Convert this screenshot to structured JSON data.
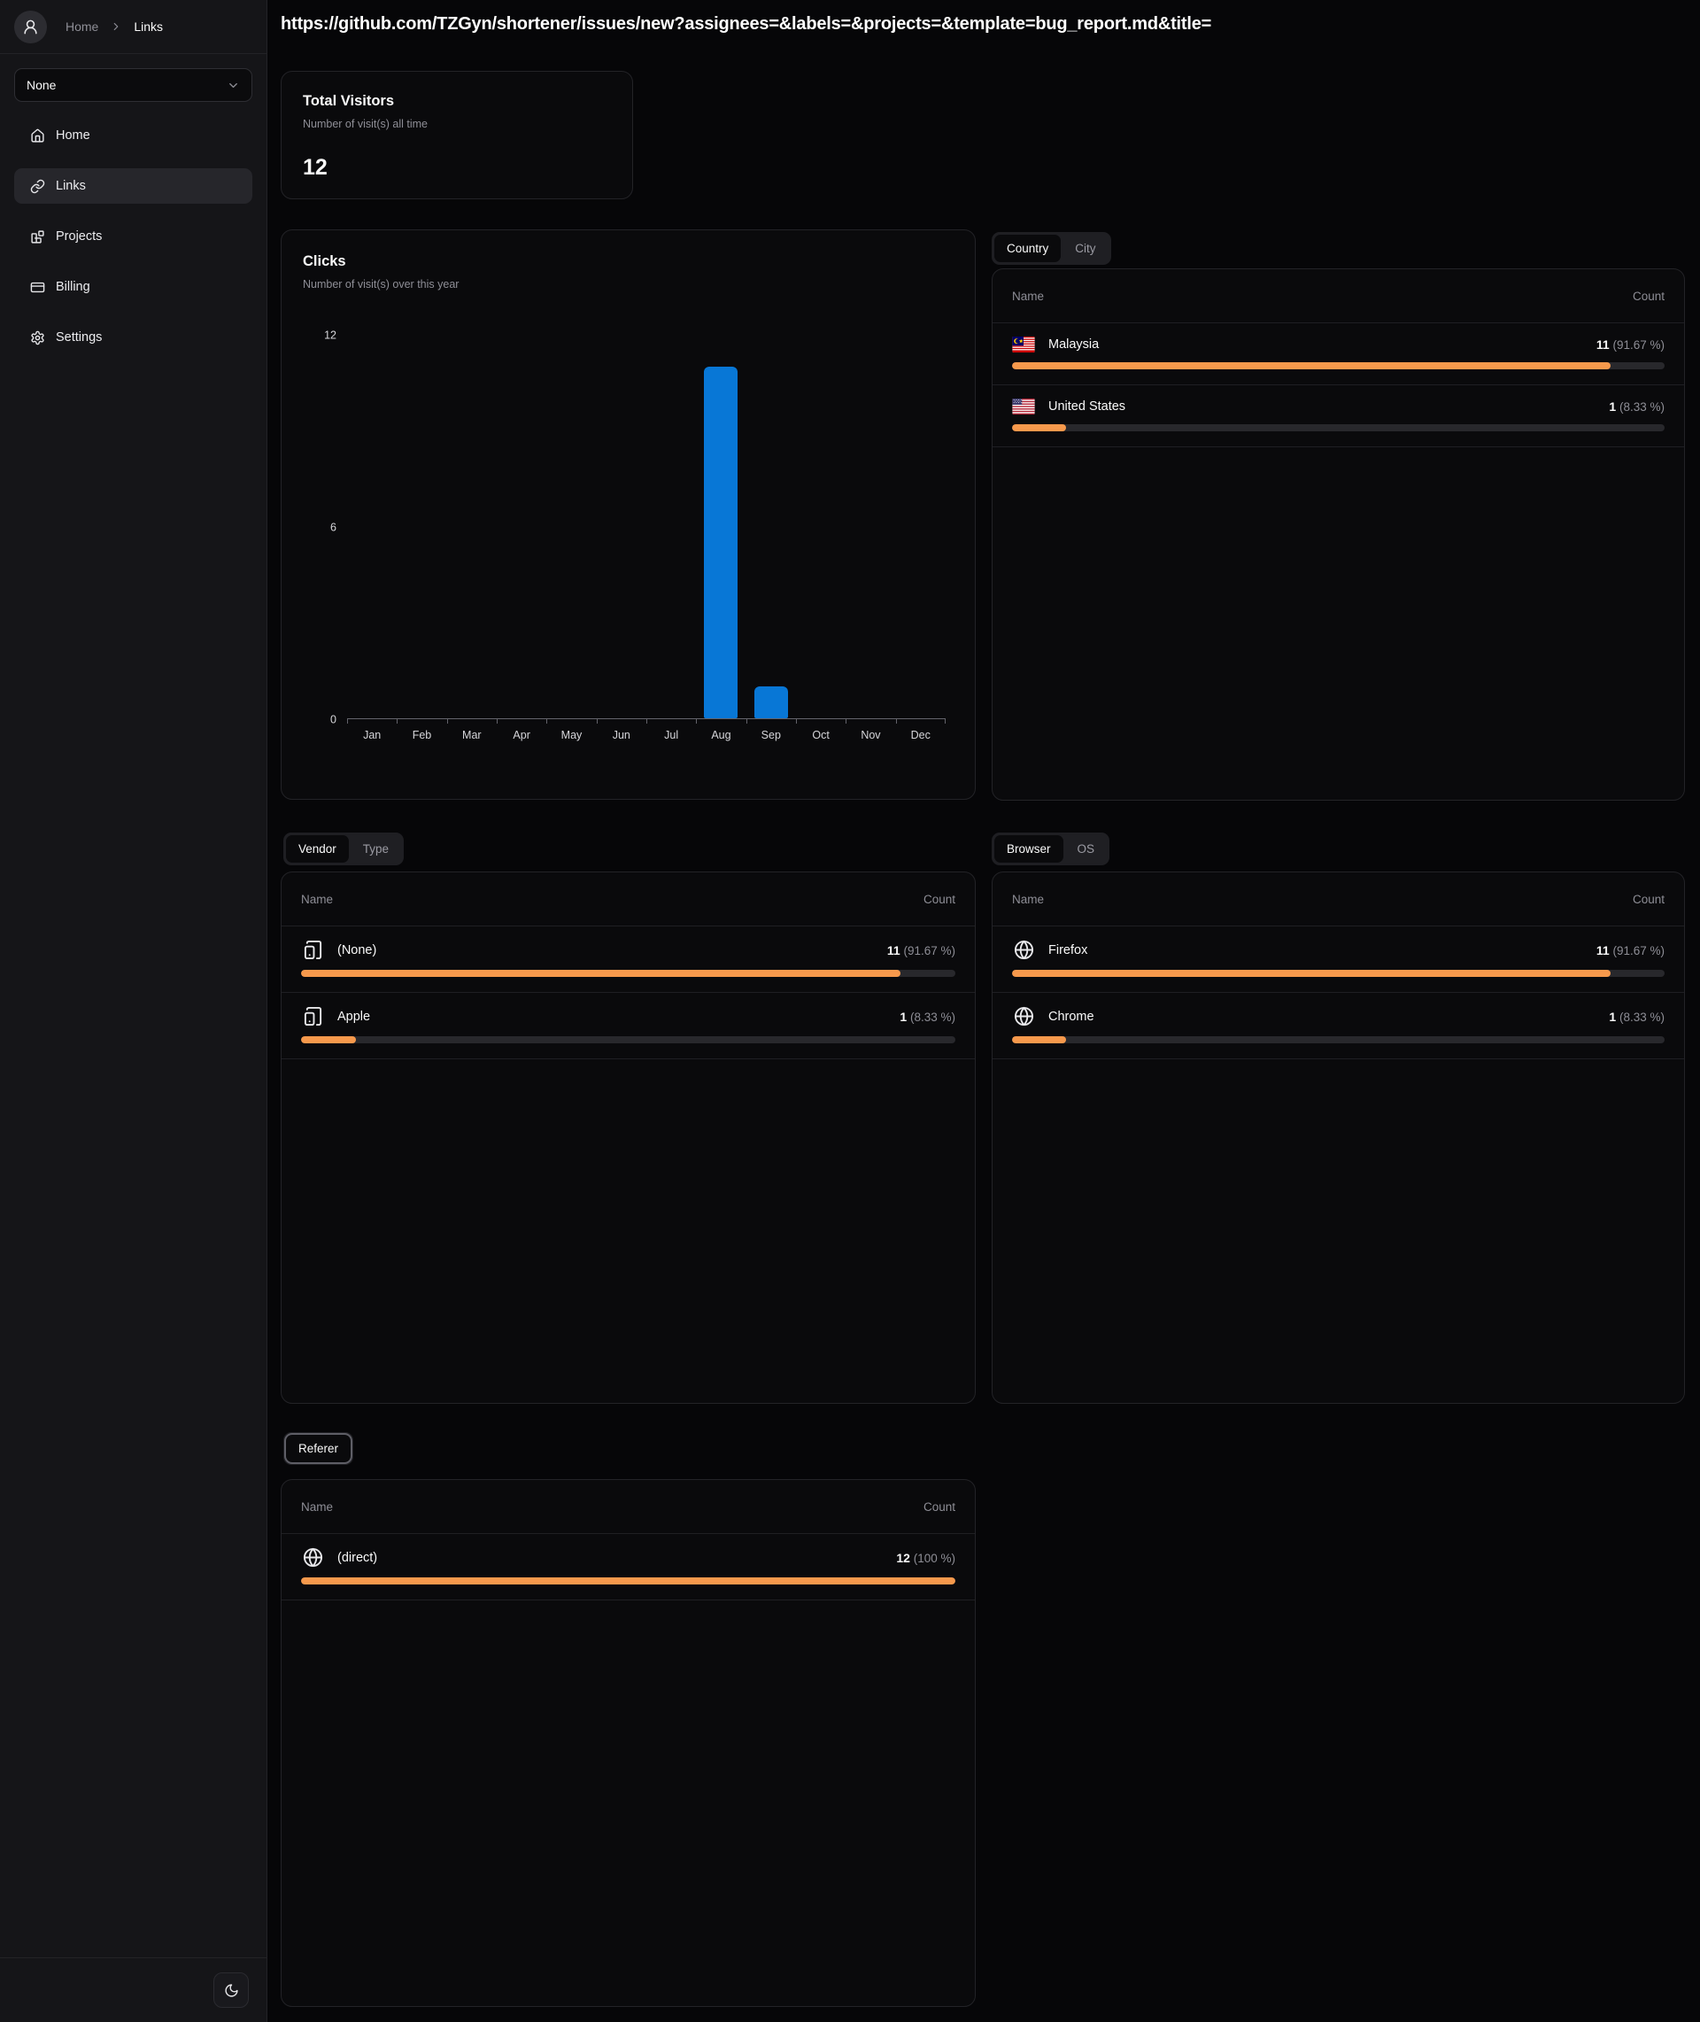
{
  "header": {
    "url": "https://github.com/TZGyn/shortener/issues/new?assignees=&labels=&projects=&template=bug_report.md&title="
  },
  "sidebar": {
    "breadcrumb": {
      "home": "Home",
      "current": "Links"
    },
    "workspace_select": {
      "value": "None"
    },
    "nav": [
      {
        "label": "Home"
      },
      {
        "label": "Links"
      },
      {
        "label": "Projects"
      },
      {
        "label": "Billing"
      },
      {
        "label": "Settings"
      }
    ]
  },
  "total_visitors": {
    "title": "Total Visitors",
    "subtitle": "Number of visit(s) all time",
    "value": "12"
  },
  "chart_data": {
    "type": "bar",
    "title": "Clicks",
    "subtitle": "Number of visit(s) over this year",
    "categories": [
      "Jan",
      "Feb",
      "Mar",
      "Apr",
      "May",
      "Jun",
      "Jul",
      "Aug",
      "Sep",
      "Oct",
      "Nov",
      "Dec"
    ],
    "values": [
      0,
      0,
      0,
      0,
      0,
      0,
      0,
      11,
      1,
      0,
      0,
      0
    ],
    "yticks": [
      0,
      6,
      12
    ],
    "ylim": [
      0,
      12
    ],
    "grid": false,
    "xlabel": "",
    "ylabel": "",
    "bar_color": "#0877d6",
    "legend": "none"
  },
  "location_panel": {
    "tabs": [
      {
        "label": "Country"
      },
      {
        "label": "City"
      }
    ],
    "columns": {
      "name": "Name",
      "count": "Count"
    },
    "rows": [
      {
        "name": "Malaysia",
        "count": "11",
        "pct_label": "(91.67 %)",
        "pct": 91.67
      },
      {
        "name": "United States",
        "count": "1",
        "pct_label": "(8.33 %)",
        "pct": 8.33
      }
    ]
  },
  "vendor_panel": {
    "tabs": [
      {
        "label": "Vendor"
      },
      {
        "label": "Type"
      }
    ],
    "columns": {
      "name": "Name",
      "count": "Count"
    },
    "rows": [
      {
        "name": "(None)",
        "count": "11",
        "pct_label": "(91.67 %)",
        "pct": 91.67
      },
      {
        "name": "Apple",
        "count": "1",
        "pct_label": "(8.33 %)",
        "pct": 8.33
      }
    ]
  },
  "browser_panel": {
    "tabs": [
      {
        "label": "Browser"
      },
      {
        "label": "OS"
      }
    ],
    "columns": {
      "name": "Name",
      "count": "Count"
    },
    "rows": [
      {
        "name": "Firefox",
        "count": "11",
        "pct_label": "(91.67 %)",
        "pct": 91.67
      },
      {
        "name": "Chrome",
        "count": "1",
        "pct_label": "(8.33 %)",
        "pct": 8.33
      }
    ]
  },
  "referer_panel": {
    "tabs": [
      {
        "label": "Referer"
      }
    ],
    "columns": {
      "name": "Name",
      "count": "Count"
    },
    "rows": [
      {
        "name": "(direct)",
        "count": "12",
        "pct_label": "(100 %)",
        "pct": 100
      }
    ]
  },
  "colors": {
    "accent_orange": "#f7994c",
    "bar_blue": "#0877d6",
    "progress_track": "#28282c",
    "card_border": "#232327",
    "sidebar_bg": "#151518",
    "page_bg": "#060608"
  }
}
